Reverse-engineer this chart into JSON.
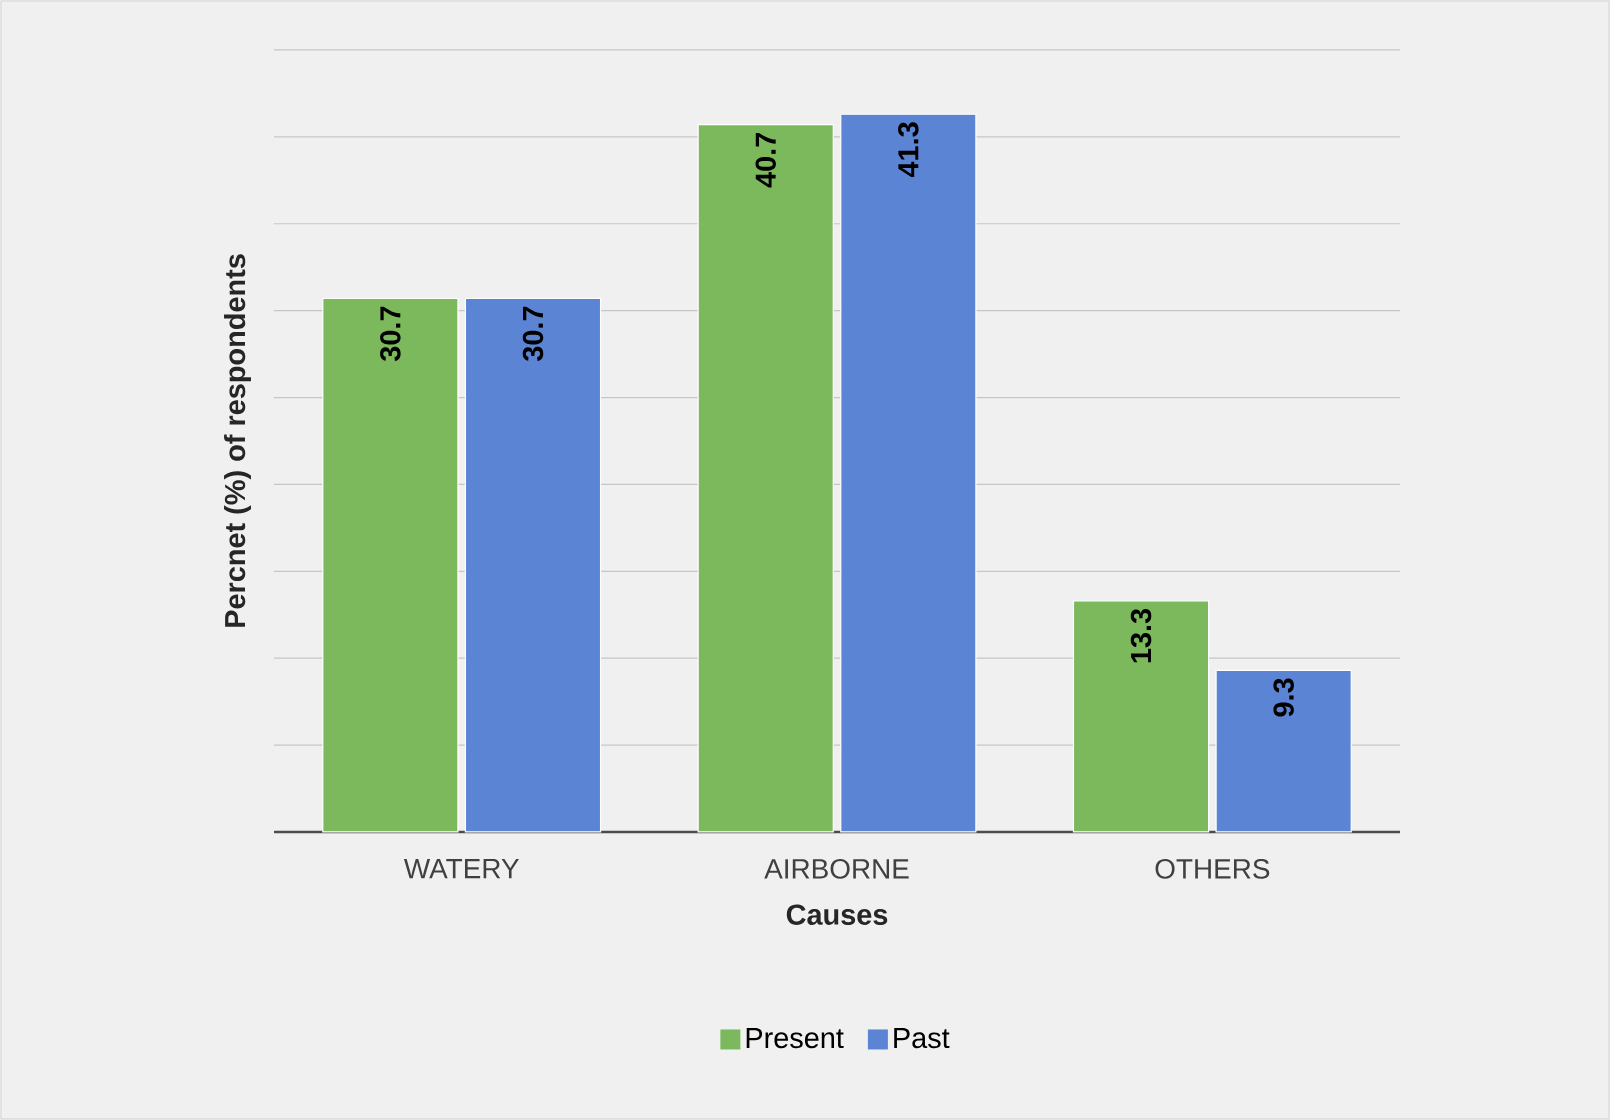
{
  "chart_data": {
    "type": "bar",
    "categories": [
      "WATERY",
      "AIRBORNE",
      "OTHERS"
    ],
    "series": [
      {
        "name": "Present",
        "color": "#7cb95c",
        "values": [
          30.7,
          40.7,
          13.3
        ],
        "value_labels": [
          "30.7",
          "40.7",
          "13.3"
        ]
      },
      {
        "name": "Past",
        "color": "#5b84d4",
        "values": [
          30.7,
          41.3,
          9.3
        ],
        "value_labels": [
          "30.7",
          "41.3",
          "9.3"
        ]
      }
    ],
    "xlabel": "Causes",
    "ylabel": "Percnet (%) of respondents",
    "ylim": [
      0,
      45
    ],
    "yticks": [
      {
        "value": 0,
        "label": null
      },
      {
        "value": 5,
        "label": null
      },
      {
        "value": 10,
        "label": null
      },
      {
        "value": 15,
        "label": null
      },
      {
        "value": 20,
        "label": null
      },
      {
        "value": 25,
        "label": null
      },
      {
        "value": 30,
        "label": null
      },
      {
        "value": 35,
        "label": null
      },
      {
        "value": 40,
        "label": null
      },
      {
        "value": 45,
        "label": null
      }
    ],
    "tick_labels": "x",
    "grid": "y",
    "legend": "bottom"
  }
}
